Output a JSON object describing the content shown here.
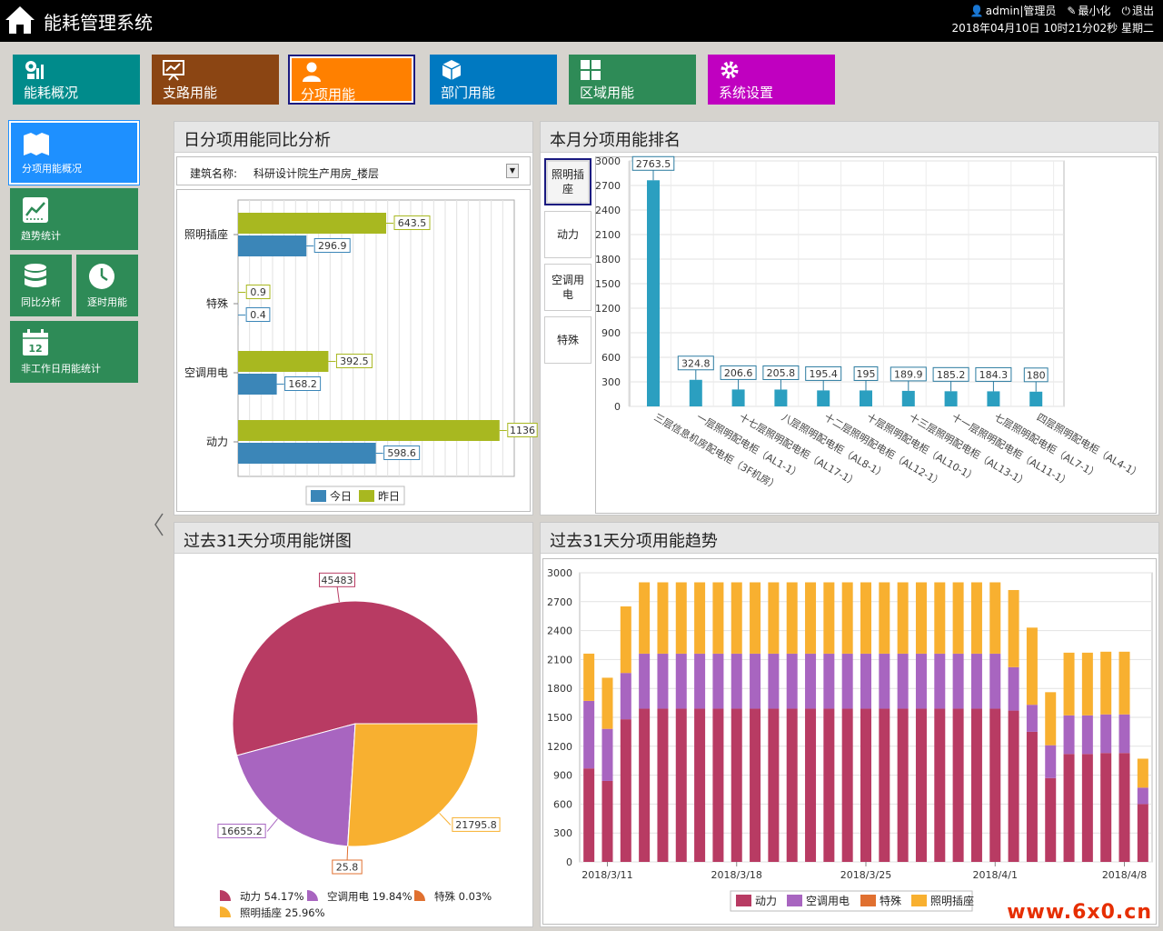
{
  "header": {
    "title": "能耗管理系统",
    "user": "admin|管理员",
    "minimize": "最小化",
    "logout": "退出",
    "datetime": "2018年04月10日 10时21分02秒 星期二"
  },
  "nav": [
    {
      "label": "能耗概况",
      "color": "#008b8b"
    },
    {
      "label": "支路用能",
      "color": "#8b4513"
    },
    {
      "label": "分项用能",
      "color": "#ff8000"
    },
    {
      "label": "部门用能",
      "color": "#0079c1"
    },
    {
      "label": "区域用能",
      "color": "#2e8b57"
    },
    {
      "label": "系统设置",
      "color": "#c000c0"
    }
  ],
  "side": [
    {
      "label": "分项用能概况",
      "color": "#1e90ff"
    },
    {
      "label": "趋势统计",
      "color": "#2e8b57"
    },
    {
      "label": "同比分析",
      "color": "#2e8b57"
    },
    {
      "label": "逐时用能",
      "color": "#2e8b57"
    },
    {
      "label": "非工作日用能统计",
      "color": "#2e8b57",
      "icon_text": "12"
    }
  ],
  "panel1": {
    "title": "日分项用能同比分析",
    "filter_label": "建筑名称:",
    "filter_value": "科研设计院生产用房_楼层",
    "chart_data": {
      "type": "bar",
      "orientation": "horizontal",
      "categories": [
        "照明插座",
        "特殊",
        "空调用电",
        "动力"
      ],
      "series": [
        {
          "name": "今日",
          "values": [
            296.9,
            0.4,
            168.2,
            598.6
          ],
          "color": "#3b86b8"
        },
        {
          "name": "昨日",
          "values": [
            643.5,
            0.9,
            392.5,
            1136
          ],
          "color": "#a8b820"
        }
      ],
      "xlim": [
        0,
        1200
      ],
      "grid": true,
      "legend": "bottom"
    }
  },
  "panel2": {
    "title": "本月分项用能排名",
    "tabs": [
      "照明插座",
      "动力",
      "空调用电",
      "特殊"
    ],
    "chart_data": {
      "type": "bar",
      "categories": [
        "三层信息机房配电柜（3F机房）",
        "一层照明配电柜（AL1-1）",
        "十七层照明配电柜（AL17-1）",
        "八层照明配电柜（AL8-1）",
        "十二层照明配电柜（AL12-1）",
        "十层照明配电柜（AL10-1）",
        "十三层照明配电柜（AL13-1）",
        "十一层照明配电柜（AL11-1）",
        "七层照明配电柜（AL7-1）",
        "四层照明配电柜（AL4-1）"
      ],
      "values": [
        2763.5,
        324.8,
        206.6,
        205.8,
        195.4,
        195,
        189.9,
        185.2,
        184.3,
        180
      ],
      "yticks": [
        0,
        300,
        600,
        900,
        1200,
        1500,
        1800,
        2100,
        2400,
        2700,
        3000
      ],
      "ylim": [
        0,
        3000
      ],
      "color": "#2b9fc0",
      "grid": true
    }
  },
  "panel3": {
    "title": "过去31天分项用能饼图",
    "chart_data": {
      "type": "pie",
      "slices": [
        {
          "name": "动力",
          "value": 45483,
          "pct": "54.17%",
          "color": "#b83b63"
        },
        {
          "name": "空调用电",
          "value": 16655.2,
          "pct": "19.84%",
          "color": "#a865c0"
        },
        {
          "name": "特殊",
          "value": 25.8,
          "pct": "0.03%",
          "color": "#e07030"
        },
        {
          "name": "照明插座",
          "value": 21795.8,
          "pct": "25.96%",
          "color": "#f8b030"
        }
      ],
      "legend": "bottom"
    }
  },
  "panel4": {
    "title": "过去31天分项用能趋势",
    "chart_data": {
      "type": "bar",
      "stacked": true,
      "x_tick_labels": [
        "2018/3/11",
        "2018/3/18",
        "2018/3/25",
        "2018/4/1",
        "2018/4/8"
      ],
      "x_tick_indices": [
        1,
        8,
        15,
        22,
        29
      ],
      "yticks": [
        0,
        300,
        600,
        900,
        1200,
        1500,
        1800,
        2100,
        2400,
        2700,
        3000
      ],
      "ylim": [
        0,
        3000
      ],
      "series": [
        {
          "name": "动力",
          "color": "#b83b63",
          "values": [
            970,
            840,
            1480,
            1590,
            1590,
            1590,
            1590,
            1590,
            1590,
            1590,
            1590,
            1590,
            1590,
            1590,
            1590,
            1590,
            1590,
            1590,
            1590,
            1590,
            1590,
            1590,
            1590,
            1570,
            1350,
            870,
            1120,
            1120,
            1130,
            1130,
            600
          ]
        },
        {
          "name": "空调用电",
          "color": "#a865c0",
          "values": [
            700,
            540,
            480,
            570,
            570,
            570,
            570,
            570,
            570,
            570,
            570,
            570,
            570,
            570,
            570,
            570,
            570,
            570,
            570,
            570,
            570,
            570,
            570,
            450,
            280,
            340,
            400,
            400,
            400,
            400,
            170
          ]
        },
        {
          "name": "特殊",
          "color": "#e07030",
          "values": [
            1,
            1,
            1,
            1,
            1,
            1,
            1,
            1,
            1,
            1,
            1,
            1,
            1,
            1,
            1,
            1,
            1,
            1,
            1,
            1,
            1,
            1,
            1,
            1,
            1,
            1,
            1,
            1,
            1,
            1,
            1
          ]
        },
        {
          "name": "照明插座",
          "color": "#f8b030",
          "values": [
            490,
            530,
            690,
            740,
            740,
            740,
            740,
            740,
            740,
            740,
            740,
            740,
            740,
            740,
            740,
            740,
            740,
            740,
            740,
            740,
            740,
            740,
            740,
            800,
            800,
            550,
            650,
            650,
            650,
            650,
            300
          ]
        }
      ],
      "legend": "bottom"
    }
  },
  "watermark": "www.6x0.cn"
}
